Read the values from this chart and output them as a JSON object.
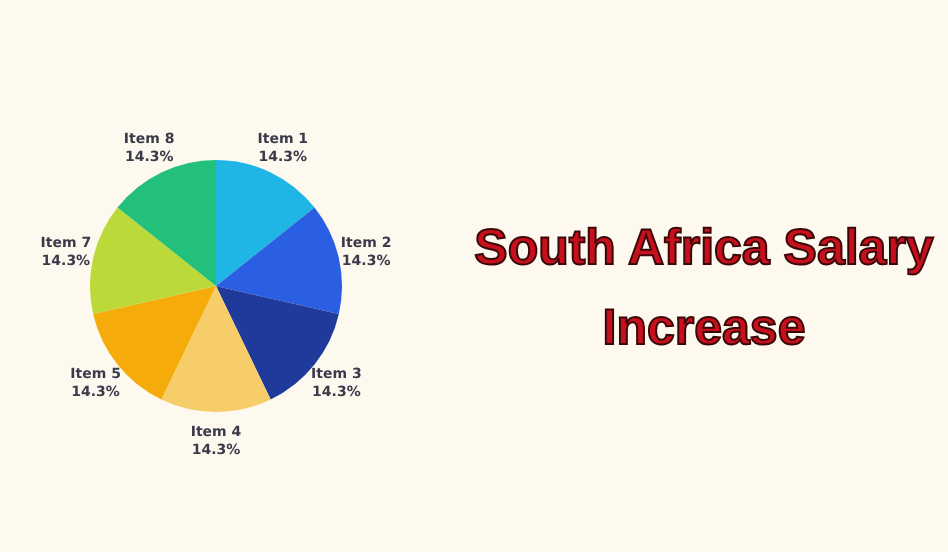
{
  "chart_data": {
    "type": "pie",
    "title": "South Africa Salary Increase",
    "categories": [
      "Item 1",
      "Item 2",
      "Item 3",
      "Item 4",
      "Item 5",
      "Item 7",
      "Item 8"
    ],
    "values": [
      14.3,
      14.3,
      14.3,
      14.3,
      14.3,
      14.3,
      14.3
    ],
    "value_labels": [
      "14.3%",
      "14.3%",
      "14.3%",
      "14.3%",
      "14.3%",
      "14.3%",
      "14.3%"
    ],
    "colors": [
      "#1fb6e6",
      "#2a5ee3",
      "#1f3a9a",
      "#f7cd6a",
      "#f5ab0a",
      "#bcd93a",
      "#22c07a"
    ],
    "legend": false
  }
}
